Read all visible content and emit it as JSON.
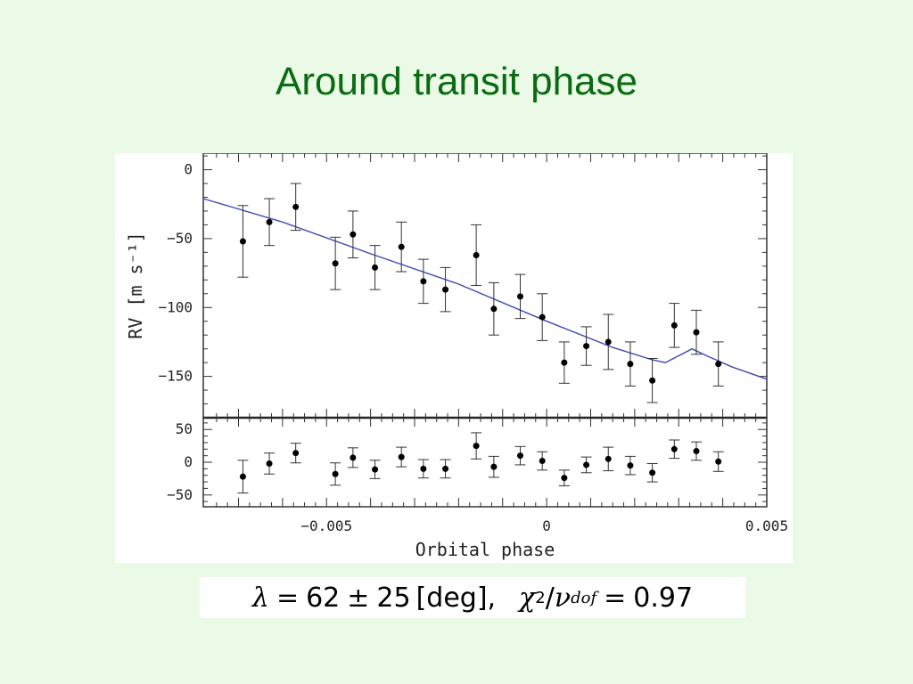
{
  "slide": {
    "title": "Around transit phase"
  },
  "result": {
    "lambda_symbol": "λ",
    "equals": "=",
    "lambda_value": "62",
    "plusminus": "±",
    "lambda_error": "25",
    "lambda_unit": "[deg],",
    "chi_symbol": "χ",
    "chi_power": "2",
    "slash": "/",
    "nu_symbol": "ν",
    "nu_subscript": "dof",
    "chi_value": "0.97"
  },
  "colors": {
    "title": "#0b6b13",
    "background": "#eafae6",
    "model_line": "#3b4bb0",
    "points": "#000000"
  },
  "chart_data": [
    {
      "type": "scatter",
      "panel": "top",
      "ylabel": "RV  [m s⁻¹]",
      "xlim": [
        -0.0078,
        0.005
      ],
      "ylim": [
        -180,
        12
      ],
      "yticks": [
        0,
        -50,
        -100,
        -150
      ],
      "ytick_labels": [
        "0",
        "−50",
        "−100",
        "−150"
      ],
      "grid": false,
      "series": [
        {
          "kind": "points",
          "x": [
            -0.0069,
            -0.0063,
            -0.0057,
            -0.0048,
            -0.0044,
            -0.0039,
            -0.0033,
            -0.0028,
            -0.0023,
            -0.0016,
            -0.0012,
            -0.0006,
            -0.0001,
            0.0004,
            0.0009,
            0.0014,
            0.0019,
            0.0024,
            0.0029,
            0.0034,
            0.0039
          ],
          "y": [
            -52,
            -38,
            -27,
            -68,
            -47,
            -71,
            -56,
            -81,
            -87,
            -62,
            -101,
            -92,
            -107,
            -140,
            -128,
            -125,
            -141,
            -153,
            -113,
            -118,
            -141
          ],
          "yerr": [
            26,
            17,
            17,
            19,
            17,
            16,
            18,
            16,
            16,
            22,
            19,
            16,
            17,
            15,
            14,
            20,
            16,
            16,
            16,
            16,
            16
          ]
        },
        {
          "kind": "model",
          "x": [
            -0.0078,
            -0.006,
            -0.004,
            -0.002,
            0.0,
            0.0015,
            0.0024,
            0.0027,
            0.003,
            0.0033,
            0.0037,
            0.0042,
            0.005
          ],
          "y": [
            -21,
            -38,
            -61,
            -83,
            -110,
            -129,
            -138,
            -140,
            -135,
            -130,
            -136,
            -143,
            -152
          ]
        }
      ]
    },
    {
      "type": "scatter",
      "panel": "bottom",
      "xlabel": "Orbital phase",
      "xlim": [
        -0.0078,
        0.005
      ],
      "ylim": [
        -68,
        68
      ],
      "yticks": [
        50,
        0,
        -50
      ],
      "ytick_labels": [
        "50",
        "0",
        "−50"
      ],
      "xticks": [
        -0.005,
        0,
        0.005
      ],
      "xtick_labels": [
        "−0.005",
        "0",
        "0.005"
      ],
      "grid": false,
      "series": [
        {
          "kind": "residuals",
          "x": [
            -0.0069,
            -0.0063,
            -0.0057,
            -0.0048,
            -0.0044,
            -0.0039,
            -0.0033,
            -0.0028,
            -0.0023,
            -0.0016,
            -0.0012,
            -0.0006,
            -0.0001,
            0.0004,
            0.0009,
            0.0014,
            0.0019,
            0.0024,
            0.0029,
            0.0034,
            0.0039
          ],
          "y": [
            -22,
            -2,
            14,
            -18,
            7,
            -11,
            8,
            -10,
            -10,
            25,
            -7,
            10,
            2,
            -24,
            -4,
            5,
            -5,
            -16,
            20,
            17,
            1
          ],
          "yerr": [
            25,
            16,
            15,
            17,
            15,
            14,
            15,
            14,
            14,
            20,
            16,
            14,
            14,
            12,
            12,
            18,
            14,
            14,
            14,
            14,
            15
          ]
        }
      ]
    }
  ]
}
